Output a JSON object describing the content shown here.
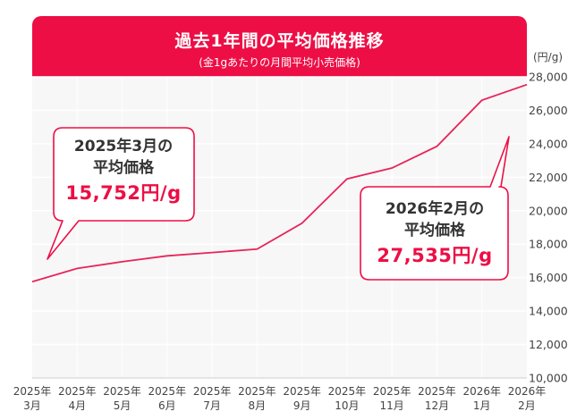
{
  "title": {
    "main": "過去1年間の平均価格推移",
    "sub": "(金1gあたりの月間平均小売価格)"
  },
  "unit_label": "(円/g)",
  "colors": {
    "accent": "#ed0e45",
    "line": "#e8245a",
    "plot_bg": "#f7f7f7",
    "grid": "#ffffff",
    "text": "#333333"
  },
  "chart_data": {
    "type": "line",
    "title": "過去1年間の平均価格推移",
    "subtitle": "(金1gあたりの月間平均小売価格)",
    "ylabel": "(円/g)",
    "ylim": [
      10000,
      28000
    ],
    "yticks": [
      10000,
      12000,
      14000,
      16000,
      18000,
      20000,
      22000,
      24000,
      26000,
      28000
    ],
    "ytick_labels": [
      "10,000",
      "12,000",
      "14,000",
      "16,000",
      "18,000",
      "20,000",
      "22,000",
      "24,000",
      "26,000",
      "28,000"
    ],
    "categories": [
      {
        "year": "2025年",
        "month": "3月"
      },
      {
        "year": "2025年",
        "month": "4月"
      },
      {
        "year": "2025年",
        "month": "5月"
      },
      {
        "year": "2025年",
        "month": "6月"
      },
      {
        "year": "2025年",
        "month": "7月"
      },
      {
        "year": "2025年",
        "month": "8月"
      },
      {
        "year": "2025年",
        "month": "9月"
      },
      {
        "year": "2025年",
        "month": "10月"
      },
      {
        "year": "2025年",
        "month": "11月"
      },
      {
        "year": "2025年",
        "month": "12月"
      },
      {
        "year": "2026年",
        "month": "1月"
      },
      {
        "year": "2026年",
        "month": "2月"
      }
    ],
    "values": [
      15752,
      16550,
      16950,
      17300,
      17500,
      17700,
      19250,
      21900,
      22550,
      23850,
      26600,
      27535
    ],
    "grid": true,
    "annotations": [
      {
        "lines": [
          "2025年3月の",
          "平均価格"
        ],
        "price": "15,752円/g",
        "target_index": 0
      },
      {
        "lines": [
          "2026年2月の",
          "平均価格"
        ],
        "price": "27,535円/g",
        "target_index": 11
      }
    ]
  }
}
